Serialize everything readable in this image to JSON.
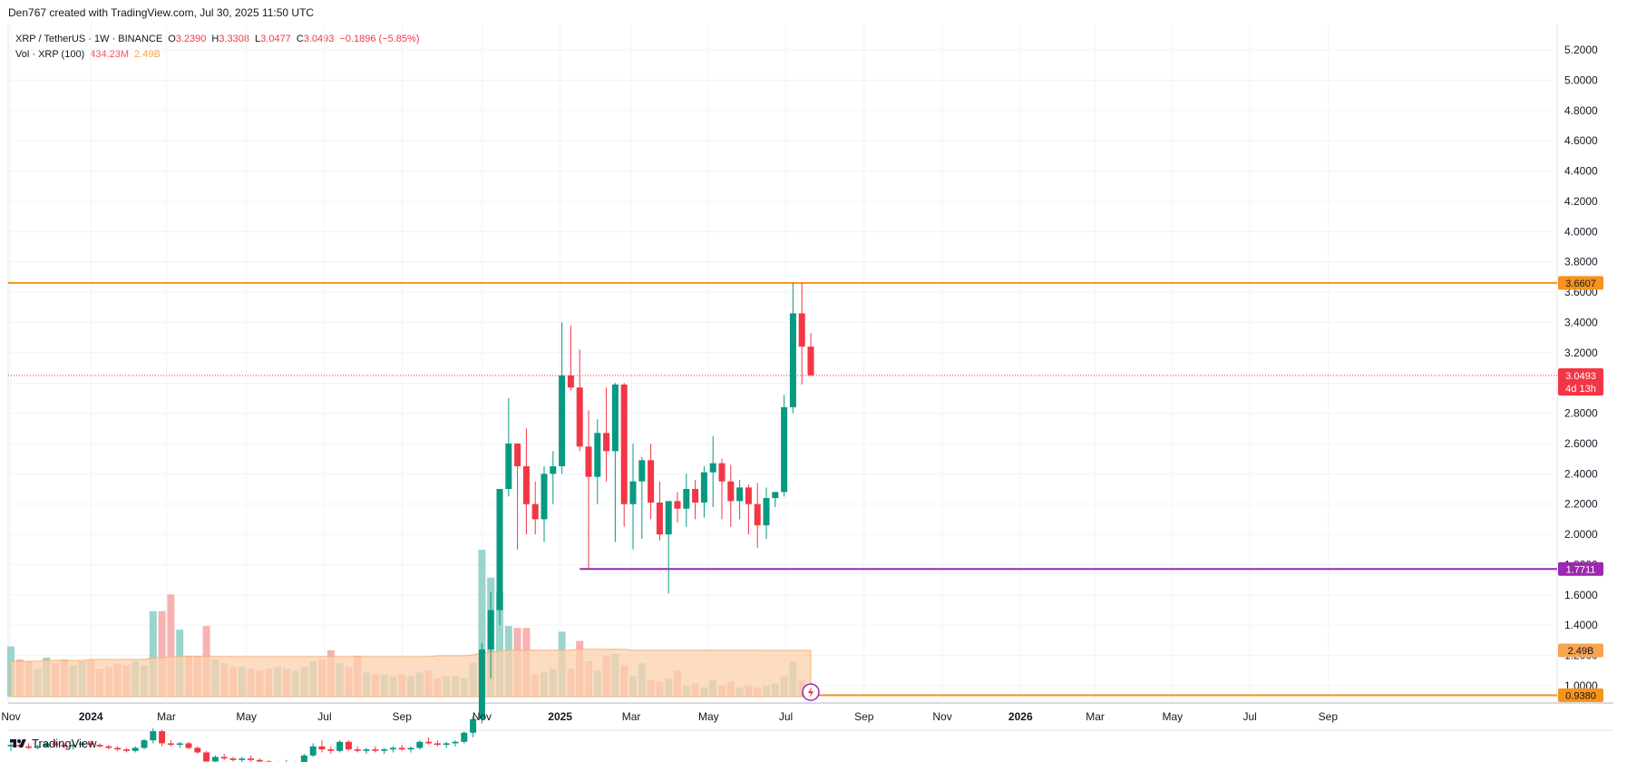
{
  "header": {
    "attribution": "Den767 created with TradingView.com, Jul 30, 2025 11:50 UTC"
  },
  "legend": {
    "symbol": "XRP / TetherUS · 1W · BINANCE",
    "open_key": "O",
    "open": "3.2390",
    "high_key": "H",
    "high": "3.3308",
    "low_key": "L",
    "low": "3.0477",
    "close_key": "C",
    "close": "3.0493",
    "change": "−0.1896 (−5.85%)",
    "volume_name": "Vol · XRP (100)",
    "volume_value": "434.23M",
    "volume_ma": "2.49B"
  },
  "footer": {
    "brand": "TradingView"
  },
  "colors": {
    "up": "#089981",
    "down": "#f23645",
    "vol_up": "#8fcfc6",
    "vol_down": "#f7a9a8",
    "vol_ma_fill": "#fbd1ad",
    "orange": "#f7931a",
    "purple": "#9c27b0"
  },
  "chart_data": {
    "type": "candlestick",
    "y_ticks": [
      "1.0000",
      "1.2000",
      "1.4000",
      "1.6000",
      "1.8000",
      "2.0000",
      "2.2000",
      "2.4000",
      "2.6000",
      "2.8000",
      "3.0000",
      "3.2000",
      "3.4000",
      "3.6000",
      "3.8000",
      "4.0000",
      "4.2000",
      "4.4000",
      "4.6000",
      "4.8000",
      "5.0000",
      "5.2000"
    ],
    "ylim": [
      0.9,
      5.3
    ],
    "x_labels": [
      {
        "text": "Nov",
        "bold": false,
        "week": 0
      },
      {
        "text": "2024",
        "bold": true,
        "week": 9
      },
      {
        "text": "Mar",
        "bold": false,
        "week": 17.5
      },
      {
        "text": "May",
        "bold": false,
        "week": 26.5
      },
      {
        "text": "Jul",
        "bold": false,
        "week": 35.3
      },
      {
        "text": "Sep",
        "bold": false,
        "week": 44
      },
      {
        "text": "Nov",
        "bold": false,
        "week": 53
      },
      {
        "text": "2025",
        "bold": true,
        "week": 61.8
      },
      {
        "text": "Mar",
        "bold": false,
        "week": 69.8
      },
      {
        "text": "May",
        "bold": false,
        "week": 78.5
      },
      {
        "text": "Jul",
        "bold": false,
        "week": 87.2
      },
      {
        "text": "Sep",
        "bold": false,
        "week": 96
      },
      {
        "text": "Nov",
        "bold": false,
        "week": 104.8
      },
      {
        "text": "2026",
        "bold": true,
        "week": 113.6
      },
      {
        "text": "Mar",
        "bold": false,
        "week": 122
      },
      {
        "text": "May",
        "bold": false,
        "week": 130.7
      },
      {
        "text": "Jul",
        "bold": false,
        "week": 139.4
      },
      {
        "text": "Sep",
        "bold": false,
        "week": 148.2
      }
    ],
    "horizontal_levels": [
      {
        "value": 3.6607,
        "label": "3.6607",
        "color": "#f7931a",
        "from_week": -1
      },
      {
        "value": 1.7711,
        "label": "1.7711",
        "color": "#9c27b0",
        "from_week": 64
      },
      {
        "value": 0.938,
        "label": "0.9380",
        "color": "#f7931a",
        "from_week": 89
      }
    ],
    "last_price": {
      "value": 3.0493,
      "label": "3.0493",
      "countdown": "4d 13h"
    },
    "volume_ma_label": "2.49B",
    "candles": [
      [
        0.6,
        0.62,
        0.57,
        0.61
      ],
      [
        0.61,
        0.63,
        0.59,
        0.6
      ],
      [
        0.6,
        0.62,
        0.58,
        0.59
      ],
      [
        0.59,
        0.61,
        0.58,
        0.6
      ],
      [
        0.6,
        0.63,
        0.59,
        0.62
      ],
      [
        0.62,
        0.64,
        0.6,
        0.61
      ],
      [
        0.61,
        0.62,
        0.59,
        0.6
      ],
      [
        0.6,
        0.62,
        0.58,
        0.61
      ],
      [
        0.61,
        0.63,
        0.6,
        0.62
      ],
      [
        0.62,
        0.64,
        0.6,
        0.61
      ],
      [
        0.61,
        0.62,
        0.59,
        0.6
      ],
      [
        0.6,
        0.61,
        0.58,
        0.59
      ],
      [
        0.59,
        0.6,
        0.57,
        0.58
      ],
      [
        0.58,
        0.59,
        0.56,
        0.57
      ],
      [
        0.57,
        0.6,
        0.56,
        0.59
      ],
      [
        0.59,
        0.65,
        0.58,
        0.64
      ],
      [
        0.64,
        0.72,
        0.62,
        0.7
      ],
      [
        0.7,
        0.71,
        0.6,
        0.62
      ],
      [
        0.62,
        0.64,
        0.6,
        0.61
      ],
      [
        0.61,
        0.63,
        0.59,
        0.62
      ],
      [
        0.62,
        0.63,
        0.58,
        0.59
      ],
      [
        0.59,
        0.6,
        0.55,
        0.56
      ],
      [
        0.56,
        0.57,
        0.48,
        0.5
      ],
      [
        0.5,
        0.54,
        0.49,
        0.53
      ],
      [
        0.53,
        0.55,
        0.51,
        0.52
      ],
      [
        0.52,
        0.53,
        0.5,
        0.51
      ],
      [
        0.51,
        0.53,
        0.49,
        0.52
      ],
      [
        0.52,
        0.54,
        0.5,
        0.51
      ],
      [
        0.51,
        0.52,
        0.49,
        0.5
      ],
      [
        0.5,
        0.51,
        0.47,
        0.48
      ],
      [
        0.48,
        0.5,
        0.46,
        0.49
      ],
      [
        0.49,
        0.51,
        0.47,
        0.48
      ],
      [
        0.48,
        0.5,
        0.47,
        0.49
      ],
      [
        0.49,
        0.55,
        0.48,
        0.54
      ],
      [
        0.54,
        0.62,
        0.53,
        0.6
      ],
      [
        0.6,
        0.64,
        0.56,
        0.58
      ],
      [
        0.58,
        0.6,
        0.55,
        0.57
      ],
      [
        0.57,
        0.64,
        0.56,
        0.63
      ],
      [
        0.63,
        0.64,
        0.57,
        0.58
      ],
      [
        0.58,
        0.6,
        0.56,
        0.57
      ],
      [
        0.57,
        0.59,
        0.55,
        0.58
      ],
      [
        0.58,
        0.6,
        0.56,
        0.57
      ],
      [
        0.57,
        0.59,
        0.55,
        0.58
      ],
      [
        0.58,
        0.6,
        0.56,
        0.59
      ],
      [
        0.59,
        0.61,
        0.57,
        0.58
      ],
      [
        0.58,
        0.6,
        0.56,
        0.59
      ],
      [
        0.59,
        0.64,
        0.58,
        0.63
      ],
      [
        0.63,
        0.66,
        0.61,
        0.62
      ],
      [
        0.62,
        0.64,
        0.6,
        0.61
      ],
      [
        0.61,
        0.63,
        0.59,
        0.62
      ],
      [
        0.62,
        0.64,
        0.6,
        0.63
      ],
      [
        0.63,
        0.7,
        0.62,
        0.69
      ],
      [
        0.69,
        0.8,
        0.66,
        0.78
      ],
      [
        0.78,
        1.28,
        0.75,
        1.24
      ],
      [
        1.24,
        1.62,
        1.05,
        1.5
      ],
      [
        1.5,
        2.3,
        1.4,
        2.3
      ],
      [
        2.3,
        2.9,
        2.25,
        2.6
      ],
      [
        2.6,
        2.6,
        1.9,
        2.45
      ],
      [
        2.45,
        2.7,
        2.0,
        2.2
      ],
      [
        2.2,
        2.35,
        2.0,
        2.1
      ],
      [
        2.1,
        2.45,
        1.95,
        2.4
      ],
      [
        2.4,
        2.55,
        2.2,
        2.45
      ],
      [
        2.45,
        3.4,
        2.4,
        3.05
      ],
      [
        3.05,
        3.38,
        2.95,
        2.97
      ],
      [
        2.97,
        3.22,
        2.55,
        2.58
      ],
      [
        2.58,
        2.82,
        1.77,
        2.38
      ],
      [
        2.38,
        2.76,
        2.2,
        2.67
      ],
      [
        2.67,
        2.97,
        2.35,
        2.55
      ],
      [
        2.55,
        3.0,
        1.95,
        2.99
      ],
      [
        2.99,
        3.0,
        2.05,
        2.2
      ],
      [
        2.2,
        2.6,
        1.9,
        2.35
      ],
      [
        2.35,
        2.51,
        1.97,
        2.49
      ],
      [
        2.49,
        2.6,
        2.1,
        2.21
      ],
      [
        2.21,
        2.35,
        1.96,
        2.0
      ],
      [
        2.0,
        2.2,
        1.61,
        2.22
      ],
      [
        2.22,
        2.28,
        2.08,
        2.17
      ],
      [
        2.17,
        2.4,
        2.05,
        2.3
      ],
      [
        2.3,
        2.36,
        2.1,
        2.21
      ],
      [
        2.21,
        2.45,
        2.11,
        2.41
      ],
      [
        2.41,
        2.65,
        2.18,
        2.47
      ],
      [
        2.47,
        2.5,
        2.1,
        2.35
      ],
      [
        2.35,
        2.46,
        2.05,
        2.22
      ],
      [
        2.22,
        2.36,
        2.1,
        2.31
      ],
      [
        2.31,
        2.33,
        2.0,
        2.2
      ],
      [
        2.2,
        2.34,
        1.91,
        2.06
      ],
      [
        2.06,
        2.31,
        1.97,
        2.24
      ],
      [
        2.24,
        2.28,
        2.18,
        2.28
      ],
      [
        2.28,
        2.92,
        2.25,
        2.84
      ],
      [
        2.84,
        3.66,
        2.8,
        3.46
      ],
      [
        3.46,
        3.66,
        2.99,
        3.24
      ],
      [
        3.24,
        3.33,
        3.05,
        3.05
      ]
    ],
    "volumes": [
      2.7,
      2.0,
      1.9,
      1.5,
      2.1,
      1.8,
      2.0,
      1.7,
      1.9,
      2.0,
      1.5,
      1.6,
      1.8,
      1.7,
      1.9,
      1.7,
      4.6,
      4.6,
      5.5,
      3.6,
      2.2,
      2.2,
      3.8,
      2.0,
      1.8,
      1.6,
      1.6,
      1.5,
      1.4,
      1.5,
      1.6,
      1.5,
      1.4,
      1.6,
      1.9,
      2.0,
      2.5,
      1.8,
      1.6,
      2.2,
      1.3,
      1.2,
      1.2,
      1.1,
      1.2,
      1.1,
      1.3,
      1.4,
      1.0,
      1.1,
      1.1,
      1.0,
      1.8,
      7.9,
      6.4,
      5.6,
      3.8,
      3.7,
      3.7,
      1.2,
      1.3,
      1.5,
      3.5,
      1.5,
      3.0,
      1.9,
      1.4,
      2.2,
      2.3,
      1.7,
      1.1,
      1.8,
      0.9,
      0.8,
      1.0,
      1.4,
      0.6,
      0.7,
      0.5,
      0.9,
      0.6,
      0.8,
      0.5,
      0.6,
      0.5,
      0.6,
      0.7,
      1.1,
      1.9,
      0.9,
      0.4
    ],
    "volume_ma": [
      1.9,
      1.9,
      1.9,
      1.9,
      1.95,
      1.95,
      1.95,
      1.95,
      1.95,
      2.0,
      2.0,
      2.0,
      2.0,
      2.0,
      2.0,
      2.0,
      2.1,
      2.1,
      2.15,
      2.15,
      2.15,
      2.15,
      2.15,
      2.15,
      2.15,
      2.15,
      2.15,
      2.15,
      2.15,
      2.15,
      2.15,
      2.15,
      2.15,
      2.15,
      2.15,
      2.15,
      2.15,
      2.15,
      2.15,
      2.15,
      2.15,
      2.15,
      2.15,
      2.15,
      2.15,
      2.15,
      2.15,
      2.15,
      2.2,
      2.2,
      2.2,
      2.2,
      2.25,
      2.35,
      2.4,
      2.45,
      2.5,
      2.5,
      2.5,
      2.5,
      2.5,
      2.5,
      2.5,
      2.5,
      2.55,
      2.55,
      2.55,
      2.55,
      2.55,
      2.55,
      2.5,
      2.5,
      2.5,
      2.5,
      2.5,
      2.5,
      2.5,
      2.5,
      2.5,
      2.5,
      2.5,
      2.5,
      2.5,
      2.5,
      2.5,
      2.49,
      2.49,
      2.49,
      2.49,
      2.49,
      2.49
    ]
  }
}
